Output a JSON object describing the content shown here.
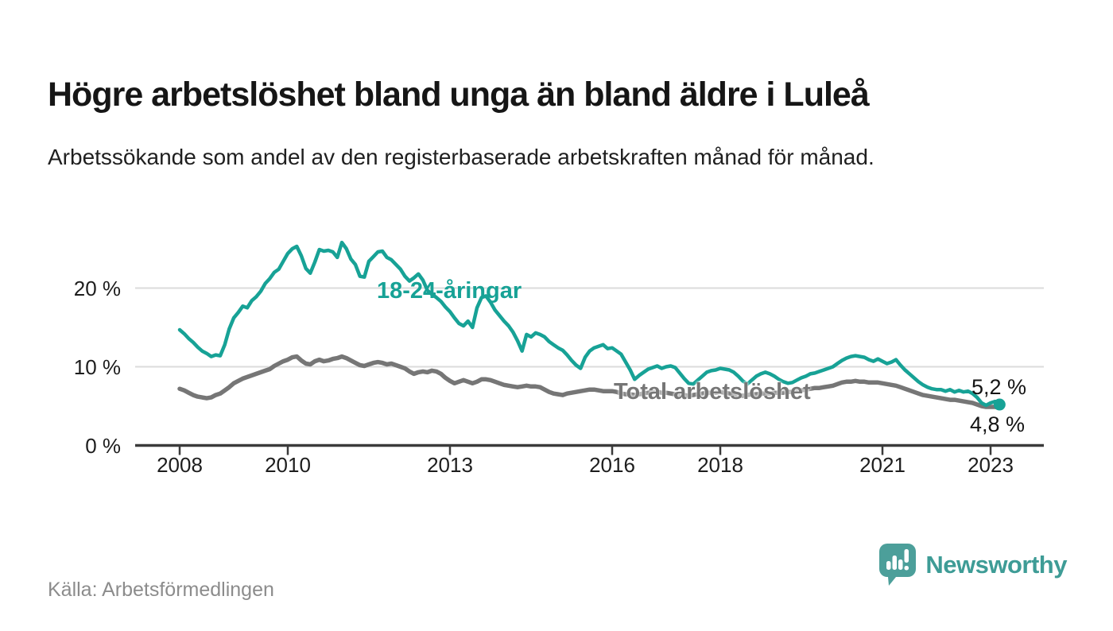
{
  "header": {
    "title": "Högre arbetslöshet bland unga än bland äldre i Luleå",
    "subtitle": "Arbetssökande som andel av den registerbaserade arbetskraften månad för månad."
  },
  "footer": {
    "source": "Källa: Arbetsförmedlingen",
    "logo_text": "Newsworthy"
  },
  "colors": {
    "accent_teal": "#17A296",
    "series_total_gray": "#767676",
    "grid": "#DBDBDB",
    "axis": "#3B3B3B",
    "logo_teal": "#4C9F9A",
    "logo_text_teal": "#3E9C96"
  },
  "chart_data": {
    "type": "line",
    "unit": "%",
    "grid": "horizontal",
    "x_start": "2008-01",
    "x_end": "2023-03",
    "x_frequency": "monthly",
    "ylim": [
      0,
      27
    ],
    "y_ticks": [
      0,
      10,
      20
    ],
    "y_tick_labels": [
      "0 %",
      "10 %",
      "20 %"
    ],
    "x_tick_years": [
      2008,
      2010,
      2013,
      2016,
      2018,
      2021,
      2023
    ],
    "x_tick_labels": [
      "2008",
      "2010",
      "2013",
      "2016",
      "2018",
      "2021",
      "2023"
    ],
    "series": [
      {
        "name": "18-24-åringar",
        "color": "#17A296",
        "end_label": "5,2 %",
        "end_value": 5.2,
        "values": [
          14.7,
          14.2,
          13.6,
          13.1,
          12.5,
          12.0,
          11.7,
          11.3,
          11.5,
          11.4,
          12.8,
          14.8,
          16.2,
          16.9,
          17.7,
          17.5,
          18.4,
          18.9,
          19.6,
          20.6,
          21.2,
          22.0,
          22.4,
          23.4,
          24.4,
          25.0,
          25.3,
          24.1,
          22.5,
          21.9,
          23.3,
          24.9,
          24.7,
          24.8,
          24.6,
          23.9,
          25.8,
          25.0,
          23.7,
          23.0,
          21.5,
          21.4,
          23.4,
          24.0,
          24.6,
          24.7,
          23.9,
          23.6,
          23.0,
          22.4,
          21.5,
          20.9,
          21.3,
          21.8,
          21.0,
          19.7,
          19.2,
          18.8,
          18.3,
          17.6,
          17.0,
          16.2,
          15.5,
          15.2,
          15.8,
          15.0,
          17.5,
          18.8,
          19.0,
          18.2,
          17.2,
          16.5,
          15.8,
          15.2,
          14.4,
          13.3,
          12.0,
          14.1,
          13.8,
          14.3,
          14.1,
          13.8,
          13.2,
          12.8,
          12.4,
          12.1,
          11.5,
          10.8,
          10.2,
          9.8,
          11.2,
          12.0,
          12.4,
          12.6,
          12.8,
          12.3,
          12.4,
          12.0,
          11.6,
          10.6,
          9.6,
          8.4,
          8.9,
          9.3,
          9.7,
          9.9,
          10.1,
          9.8,
          10.0,
          10.1,
          9.9,
          9.2,
          8.5,
          7.9,
          7.8,
          8.3,
          8.8,
          9.3,
          9.5,
          9.6,
          9.8,
          9.7,
          9.6,
          9.3,
          8.8,
          8.2,
          7.8,
          8.3,
          8.8,
          9.1,
          9.3,
          9.1,
          8.8,
          8.4,
          8.1,
          7.9,
          8.0,
          8.3,
          8.6,
          8.8,
          9.1,
          9.2,
          9.4,
          9.6,
          9.8,
          10.0,
          10.4,
          10.8,
          11.1,
          11.3,
          11.4,
          11.3,
          11.2,
          10.9,
          10.7,
          11.0,
          10.7,
          10.4,
          10.6,
          10.9,
          10.2,
          9.6,
          9.1,
          8.6,
          8.1,
          7.7,
          7.4,
          7.2,
          7.1,
          7.1,
          6.9,
          7.1,
          6.8,
          7.0,
          6.8,
          6.9,
          6.6,
          6.1,
          5.4,
          5.1,
          5.4,
          5.6,
          5.2
        ]
      },
      {
        "name": "Total arbetslöshet",
        "color": "#767676",
        "end_label": "4,8 %",
        "end_value": 4.8,
        "values": [
          7.2,
          7.0,
          6.7,
          6.4,
          6.2,
          6.1,
          6.0,
          6.1,
          6.4,
          6.6,
          7.0,
          7.4,
          7.9,
          8.2,
          8.5,
          8.7,
          8.9,
          9.1,
          9.3,
          9.5,
          9.7,
          10.1,
          10.4,
          10.7,
          10.9,
          11.2,
          11.3,
          10.8,
          10.4,
          10.3,
          10.7,
          10.9,
          10.7,
          10.8,
          11.0,
          11.1,
          11.3,
          11.1,
          10.8,
          10.5,
          10.2,
          10.1,
          10.3,
          10.5,
          10.6,
          10.5,
          10.3,
          10.4,
          10.2,
          10.0,
          9.8,
          9.4,
          9.1,
          9.3,
          9.4,
          9.3,
          9.5,
          9.4,
          9.1,
          8.6,
          8.2,
          7.9,
          8.1,
          8.3,
          8.1,
          7.9,
          8.1,
          8.4,
          8.4,
          8.3,
          8.1,
          7.9,
          7.7,
          7.6,
          7.5,
          7.4,
          7.5,
          7.6,
          7.5,
          7.5,
          7.4,
          7.1,
          6.8,
          6.6,
          6.5,
          6.4,
          6.6,
          6.7,
          6.8,
          6.9,
          7.0,
          7.1,
          7.1,
          7.0,
          6.9,
          6.9,
          6.9,
          6.8,
          6.6,
          6.5,
          6.5,
          6.4,
          6.5,
          6.6,
          6.7,
          6.8,
          6.8,
          6.7,
          6.7,
          6.6,
          6.5,
          6.4,
          6.4,
          6.3,
          6.4,
          6.5,
          6.6,
          6.7,
          6.7,
          6.7,
          6.8,
          6.7,
          6.6,
          6.5,
          6.4,
          6.3,
          6.4,
          6.5,
          6.5,
          6.6,
          6.6,
          6.6,
          6.7,
          6.7,
          6.7,
          6.8,
          6.8,
          6.9,
          7.0,
          7.1,
          7.2,
          7.3,
          7.3,
          7.4,
          7.5,
          7.6,
          7.8,
          8.0,
          8.1,
          8.1,
          8.2,
          8.1,
          8.1,
          8.0,
          8.0,
          8.0,
          7.9,
          7.8,
          7.7,
          7.6,
          7.4,
          7.2,
          7.0,
          6.8,
          6.6,
          6.4,
          6.3,
          6.2,
          6.1,
          6.0,
          5.9,
          5.8,
          5.8,
          5.7,
          5.6,
          5.5,
          5.4,
          5.2,
          5.0,
          4.9,
          4.9,
          4.9,
          4.8
        ]
      }
    ]
  }
}
